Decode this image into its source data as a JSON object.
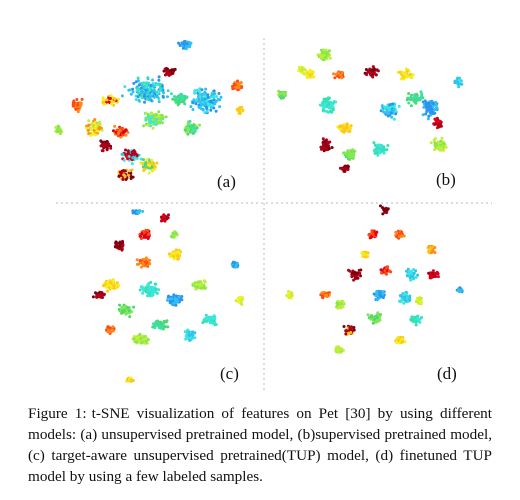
{
  "figure": {
    "panels": [
      {
        "label": "(a)"
      },
      {
        "label": "(b)"
      },
      {
        "label": "(c)"
      },
      {
        "label": "(d)"
      }
    ],
    "palette": [
      "#7a0010",
      "#b0001a",
      "#e0001a",
      "#ff4a14",
      "#ff8a1a",
      "#ffc61a",
      "#f2f020",
      "#c2ee3a",
      "#84e84e",
      "#4cd870",
      "#38e0b0",
      "#3ae6e0",
      "#32c0f0",
      "#2a94f0"
    ]
  },
  "caption": {
    "label": "Figure 1:",
    "text": "t-SNE visualization of features on Pet [30] by using different models: (a) unsupervised pretrained model, (b)supervised pretrained model, (c) target-aware unsupervised pretrained(TUP) model, (d) finetuned TUP model by using a few labeled samples."
  }
}
